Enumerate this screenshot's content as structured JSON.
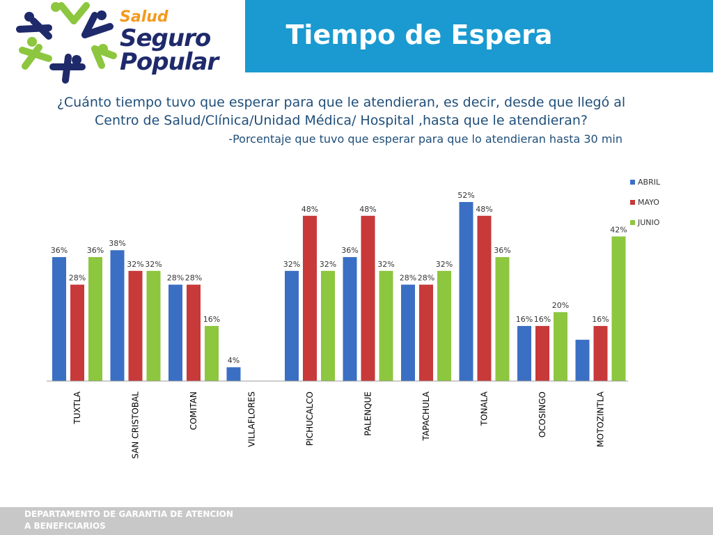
{
  "header": {
    "title": "Tiempo de Espera",
    "brand": {
      "line1": "Salud",
      "line2": "Seguro",
      "line3": "Popular"
    }
  },
  "question": "¿Cuánto tiempo  tuvo que esperar para que le atendieran, es decir, desde que llegó al Centro de Salud/Clínica/Unidad Médica/ Hospital ,hasta que le atendieran?",
  "subnote": "-Porcentaje que tuvo que esperar para que lo atendieran  hasta 30 min",
  "footer": {
    "line1": "DEPARTAMENTO DE GARANTIA DE ATENCION",
    "line2": "A BENEFICIARIOS"
  },
  "colors": {
    "header": "#1a9ad0",
    "abril": "#3a6fc4",
    "mayo": "#c8393a",
    "junio": "#8dc63f",
    "text": "#1f4e79"
  },
  "chart_data": {
    "type": "bar",
    "categories": [
      "TUXTLA",
      "SAN CRISTOBAL",
      "COMITAN",
      "VILLAFLORES",
      "PICHUCALCO",
      "PALENQUE",
      "TAPACHULA",
      "TONALA",
      "OCOSINGO",
      "MOTOZINTLA"
    ],
    "series": [
      {
        "name": "ABRIL",
        "values": [
          36,
          38,
          28,
          4,
          32,
          36,
          28,
          52,
          16,
          12
        ],
        "labels": [
          "36%",
          "38%",
          "28%",
          "4%",
          "32%",
          "36%",
          "28%",
          "52%",
          "16%",
          ""
        ]
      },
      {
        "name": "MAYO",
        "values": [
          28,
          32,
          28,
          0,
          48,
          48,
          28,
          48,
          16,
          16
        ],
        "labels": [
          "28%",
          "32%",
          "28%",
          "",
          "48%",
          "48%",
          "28%",
          "48%",
          "16%",
          "16%"
        ]
      },
      {
        "name": "JUNIO",
        "values": [
          36,
          32,
          16,
          0,
          32,
          32,
          32,
          36,
          20,
          42
        ],
        "labels": [
          "36%",
          "32%",
          "16%",
          "",
          "32%",
          "32%",
          "32%",
          "36%",
          "20%",
          "42%"
        ]
      }
    ],
    "ylim": [
      0,
      52
    ],
    "grid": false,
    "legend": "top-right"
  }
}
